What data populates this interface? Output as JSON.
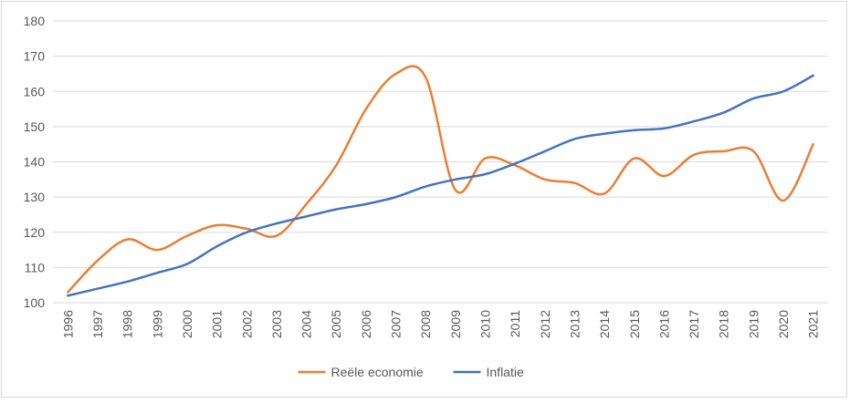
{
  "chart_data": {
    "type": "line",
    "title": "",
    "xlabel": "",
    "ylabel": "",
    "x": [
      "1996",
      "1997",
      "1998",
      "1999",
      "2000",
      "2001",
      "2002",
      "2003",
      "2004",
      "2005",
      "2006",
      "2007",
      "2008",
      "2009",
      "2010",
      "2011",
      "2012",
      "2013",
      "2014",
      "2015",
      "2016",
      "2017",
      "2018",
      "2019",
      "2020",
      "2021"
    ],
    "ylim": [
      100,
      180
    ],
    "yticks": [
      100,
      110,
      120,
      130,
      140,
      150,
      160,
      170,
      180
    ],
    "grid": true,
    "legend_position": "bottom",
    "series": [
      {
        "name": "Reële economie",
        "color": "#ED7D31",
        "values": [
          103,
          112,
          118,
          115,
          119,
          122,
          121,
          119,
          128,
          139,
          155,
          165,
          164,
          132,
          141,
          139,
          135,
          134,
          131,
          141,
          136,
          142,
          143,
          143,
          129,
          145
        ]
      },
      {
        "name": "Inflatie",
        "color": "#4472C4",
        "values": [
          102,
          104,
          106,
          108.5,
          111,
          116,
          120,
          122.5,
          124.5,
          126.5,
          128,
          130,
          133,
          135,
          136.5,
          139.5,
          143,
          146.5,
          148,
          149,
          149.5,
          151.5,
          154,
          158,
          160,
          164.5
        ]
      }
    ]
  }
}
